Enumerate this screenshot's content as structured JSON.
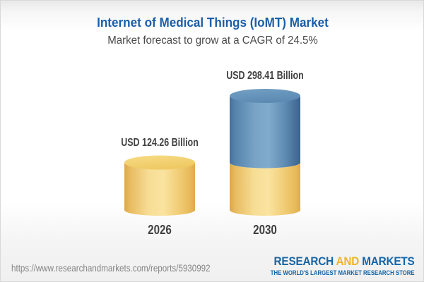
{
  "header": {
    "title": "Internet of Medical Things (IoMT) Market",
    "subtitle": "Market forecast to grow at a CAGR of 24.5%"
  },
  "chart_data": {
    "type": "bar",
    "subtype": "3d-cylinder",
    "title": "Internet of Medical Things (IoMT) Market",
    "subtitle": "Market forecast to grow at a CAGR of 24.5%",
    "unit": "USD Billion",
    "cagr_percent": 24.5,
    "categories": [
      "2026",
      "2030"
    ],
    "values": [
      124.26,
      298.41
    ],
    "bars": [
      {
        "year": "2026",
        "value": 124.26,
        "label": "USD 124.26 Billion",
        "segments": [
          {
            "upto": 124.26,
            "color": "gold"
          }
        ]
      },
      {
        "year": "2030",
        "value": 298.41,
        "label": "USD 298.41 Billion",
        "segments": [
          {
            "upto": 124.26,
            "color": "gold"
          },
          {
            "upto": 298.41,
            "color": "blue"
          }
        ]
      }
    ],
    "colors": {
      "gold_body_edge": "#E0AB4B",
      "gold_body_center": "#FAE3A0",
      "gold_top": "#F4D376",
      "blue_body_edge": "#3A658F",
      "blue_body_center": "#81ABCC",
      "blue_top": "#6696BC"
    },
    "grid": false,
    "legend": false
  },
  "footer": {
    "url": "https://www.researchandmarkets.com/reports/5930992",
    "logo": {
      "word1": "RESEARCH",
      "word2": "AND",
      "word3": "MARKETS",
      "tagline": "THE WORLD'S LARGEST MARKET RESEARCH STORE",
      "blue": "#1565A7",
      "gold": "#F0B42C"
    }
  }
}
